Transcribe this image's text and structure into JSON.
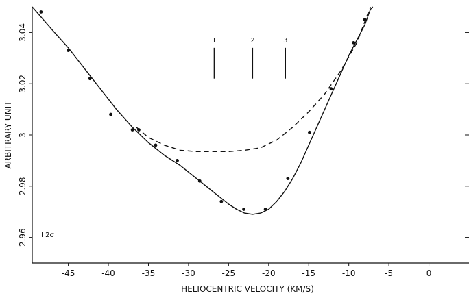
{
  "chart_data": {
    "type": "scatter",
    "title": "",
    "xlabel": "HELIOCENTRIC VELOCITY (KM/S)",
    "ylabel": "ARBITRARY UNIT",
    "xlim": [
      -49.5,
      5
    ],
    "ylim": [
      2.95,
      3.05
    ],
    "xticks": [
      -45,
      -40,
      -35,
      -30,
      -25,
      -20,
      -15,
      -10,
      -5,
      0
    ],
    "xtick_labels": [
      "-45",
      "-40",
      "-35",
      "-30",
      "-25",
      "-20",
      "-15",
      "-10",
      "-5",
      "0"
    ],
    "yticks": [
      2.96,
      2.98,
      3.0,
      3.02,
      3.04
    ],
    "ytick_labels": [
      "2.96",
      "2.98",
      "3",
      "3.02",
      "3.04"
    ],
    "grid": false,
    "series": [
      {
        "style": "points",
        "x": [
          -48.4,
          -45.0,
          -42.3,
          -39.7,
          -37.0,
          -36.2,
          -34.1,
          -31.4,
          -28.6,
          -25.9,
          -23.1,
          -20.4,
          -17.6,
          -14.9,
          -12.2,
          -9.4,
          -8.0
        ],
        "y": [
          3.048,
          3.033,
          3.022,
          3.008,
          3.002,
          3.002,
          2.996,
          2.99,
          2.982,
          2.974,
          2.971,
          2.971,
          2.983,
          3.001,
          3.018,
          3.036,
          3.045
        ]
      },
      {
        "style": "solid",
        "x": [
          -49.5,
          -47,
          -45,
          -43,
          -41,
          -39,
          -37,
          -35,
          -33,
          -31,
          -29,
          -27,
          -25,
          -24,
          -23,
          -22,
          -21,
          -20,
          -19,
          -18,
          -17,
          -16,
          -15,
          -14,
          -13,
          -12,
          -11,
          -10,
          -9,
          -8,
          -7.3,
          -7
        ],
        "y": [
          3.05,
          3.041,
          3.034,
          3.026,
          3.018,
          3.01,
          3.003,
          2.997,
          2.992,
          2.988,
          2.983,
          2.978,
          2.973,
          2.971,
          2.9695,
          2.969,
          2.9695,
          2.971,
          2.974,
          2.978,
          2.983,
          2.989,
          2.996,
          3.003,
          3.01,
          3.017,
          3.024,
          3.031,
          3.037,
          3.043,
          3.049,
          3.05
        ]
      },
      {
        "style": "dashed",
        "x": [
          -36.5,
          -35,
          -33,
          -31,
          -29,
          -27,
          -25,
          -23,
          -21,
          -19,
          -17,
          -15,
          -13,
          -11,
          -9,
          -7.3
        ],
        "y": [
          3.003,
          2.999,
          2.996,
          2.994,
          2.9935,
          2.9935,
          2.9935,
          2.994,
          2.995,
          2.998,
          3.003,
          3.009,
          3.016,
          3.025,
          3.036,
          3.05
        ]
      }
    ],
    "markers": [
      {
        "label": "1",
        "x": -26.8,
        "y_top": 3.034,
        "y_bottom": 3.022
      },
      {
        "label": "2",
        "x": -22.0,
        "y_top": 3.034,
        "y_bottom": 3.022
      },
      {
        "label": "3",
        "x": -17.9,
        "y_top": 3.034,
        "y_bottom": 3.022
      }
    ],
    "annotation": "I 2σ"
  }
}
